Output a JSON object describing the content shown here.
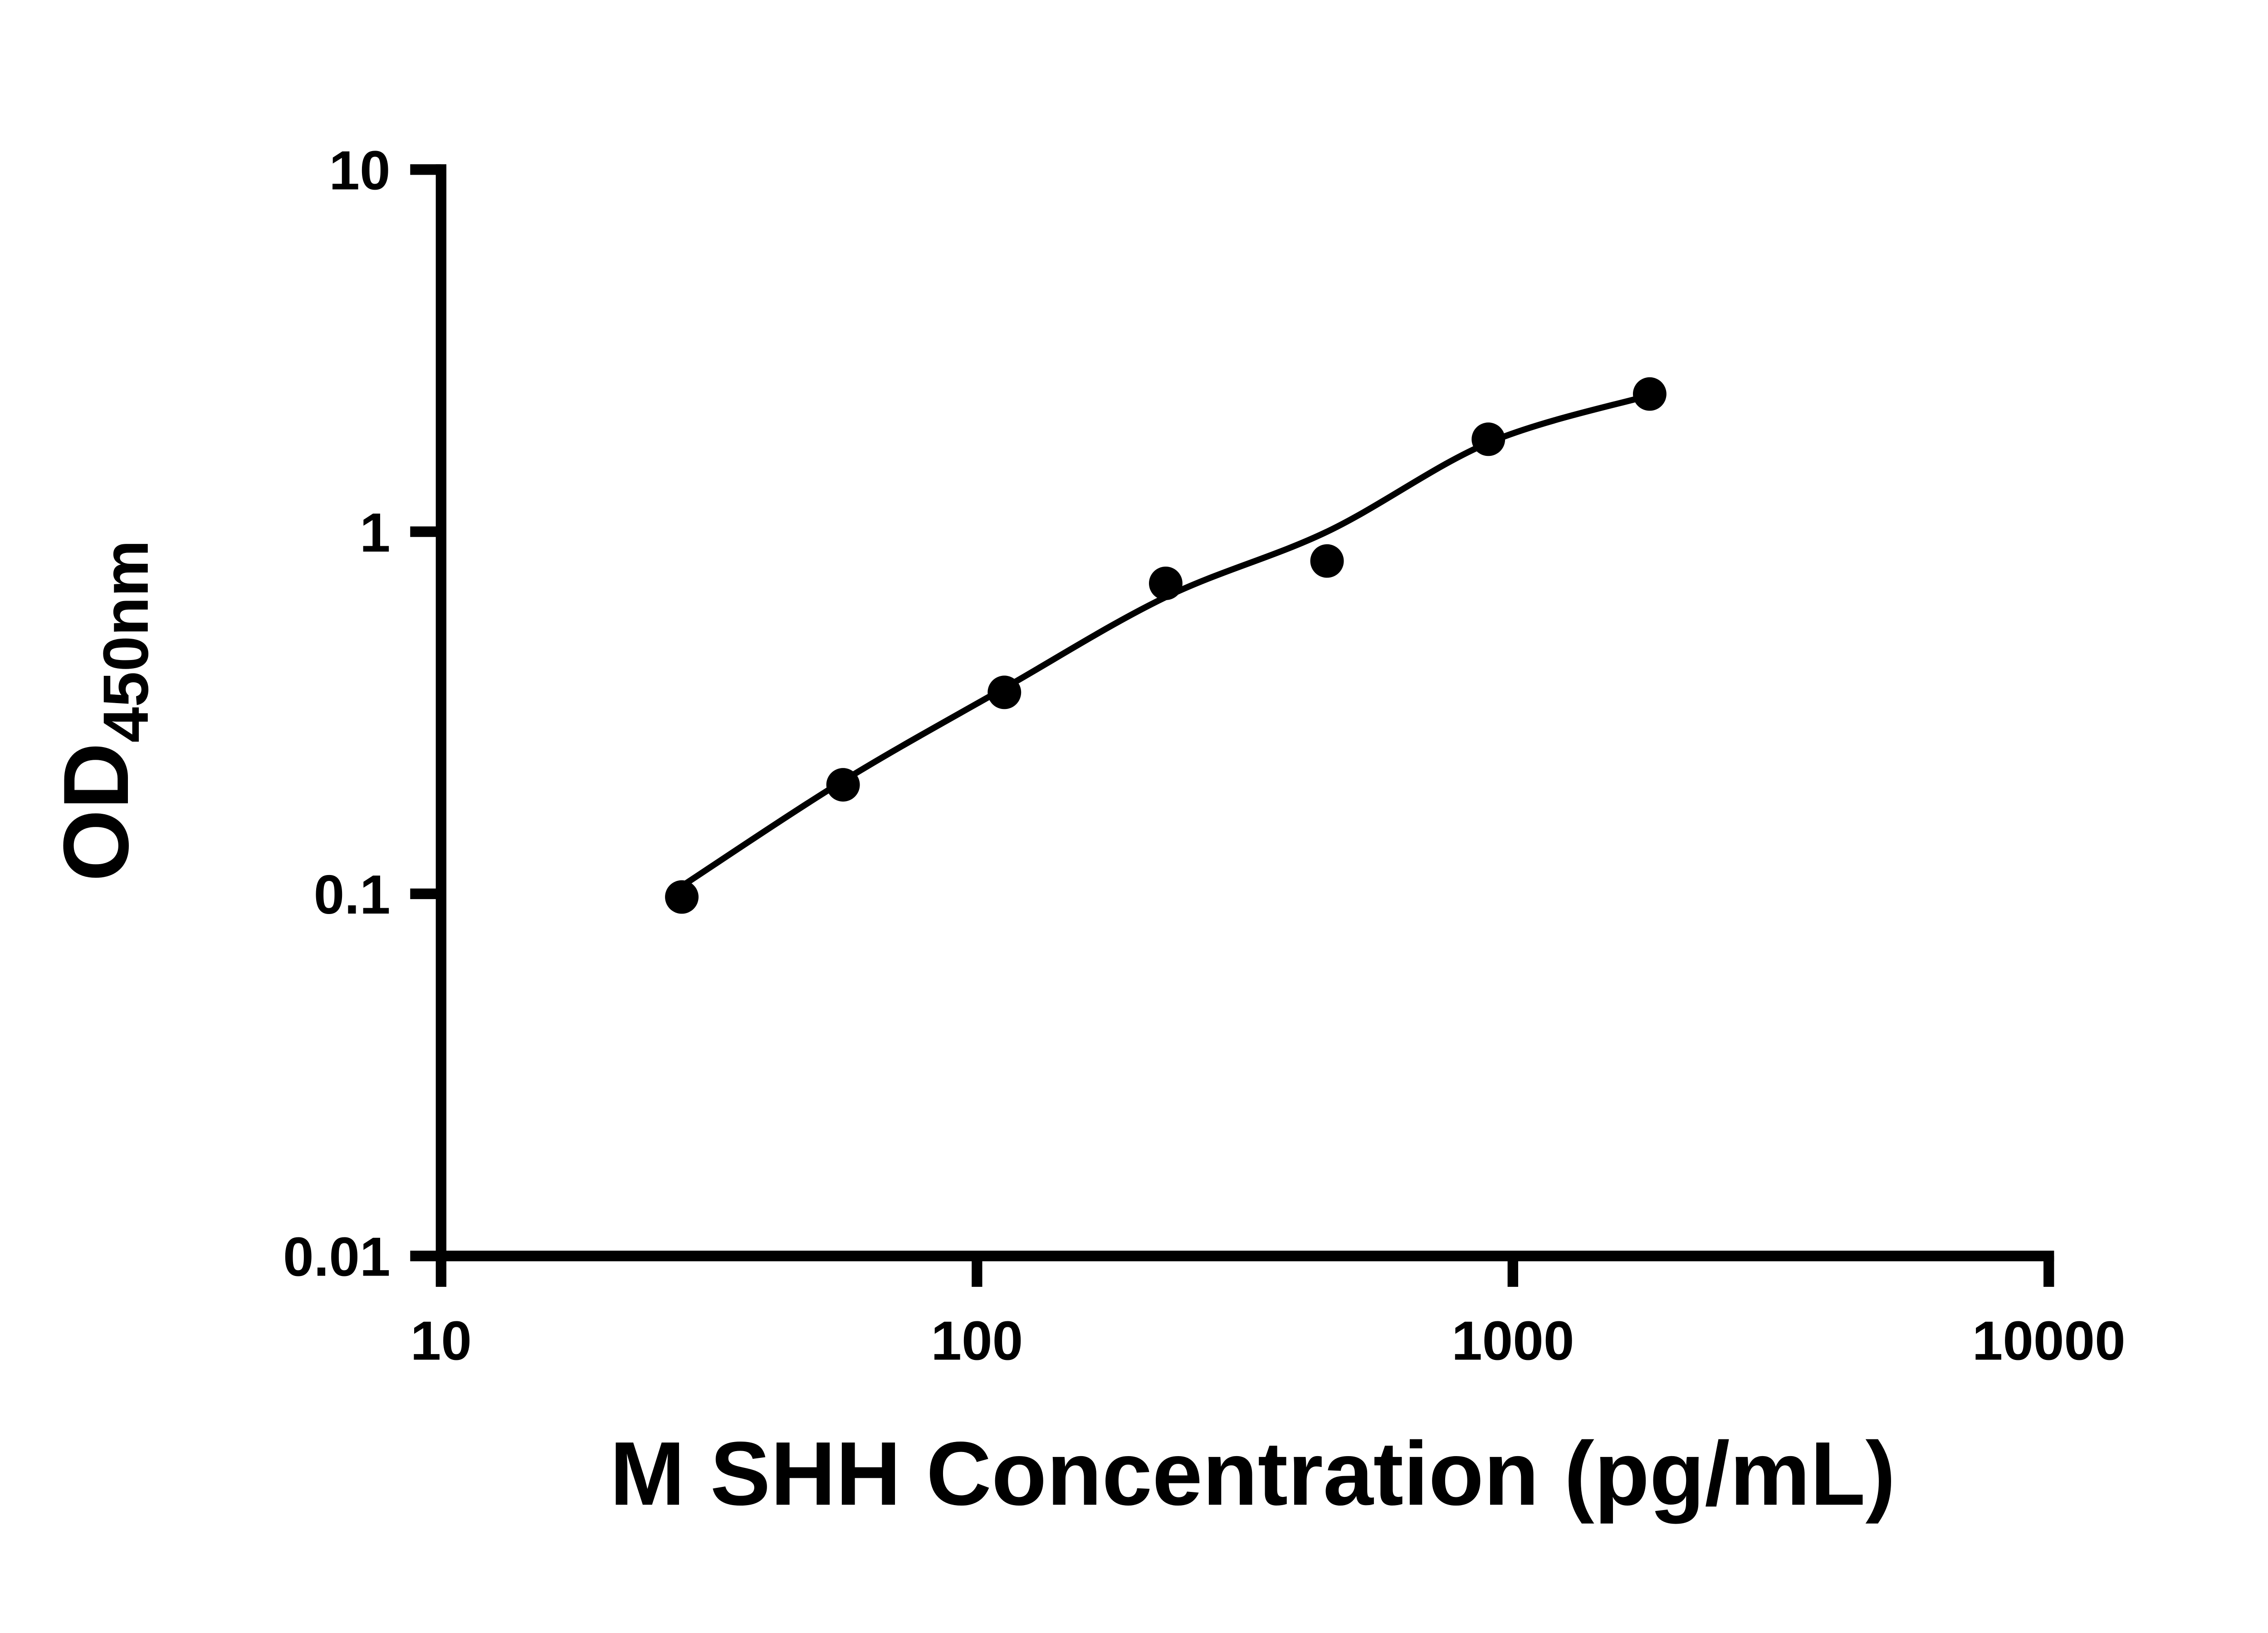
{
  "chart_data": {
    "type": "scatter",
    "title": "",
    "xlabel": "M SHH Concentration (pg/mL)",
    "ylabel_main": "OD",
    "ylabel_sub": "450nm",
    "x_scale": "log",
    "y_scale": "log",
    "xlim": [
      10,
      10000
    ],
    "ylim": [
      0.01,
      10
    ],
    "x_ticks": [
      10,
      100,
      1000,
      10000
    ],
    "x_tick_labels": [
      "10",
      "100",
      "1000",
      "10000"
    ],
    "y_ticks": [
      10,
      1,
      0.1,
      0.01
    ],
    "y_tick_labels": [
      "10",
      "1",
      "0.1",
      "0.01"
    ],
    "grid": false,
    "legend": null,
    "points": [
      {
        "x": 28.13,
        "y": 0.098
      },
      {
        "x": 56.25,
        "y": 0.2
      },
      {
        "x": 112.5,
        "y": 0.36
      },
      {
        "x": 225,
        "y": 0.72
      },
      {
        "x": 450,
        "y": 0.83
      },
      {
        "x": 900,
        "y": 1.8
      },
      {
        "x": 1800,
        "y": 2.4
      }
    ],
    "fit_curve": [
      {
        "x": 28.13,
        "y": 0.105
      },
      {
        "x": 56.25,
        "y": 0.205
      },
      {
        "x": 112.5,
        "y": 0.37
      },
      {
        "x": 225,
        "y": 0.66
      },
      {
        "x": 450,
        "y": 1.0
      },
      {
        "x": 900,
        "y": 1.76
      },
      {
        "x": 1800,
        "y": 2.38
      }
    ],
    "colors": {
      "line": "#000000",
      "marker": "#000000",
      "axis": "#000000",
      "background": "#ffffff"
    }
  }
}
